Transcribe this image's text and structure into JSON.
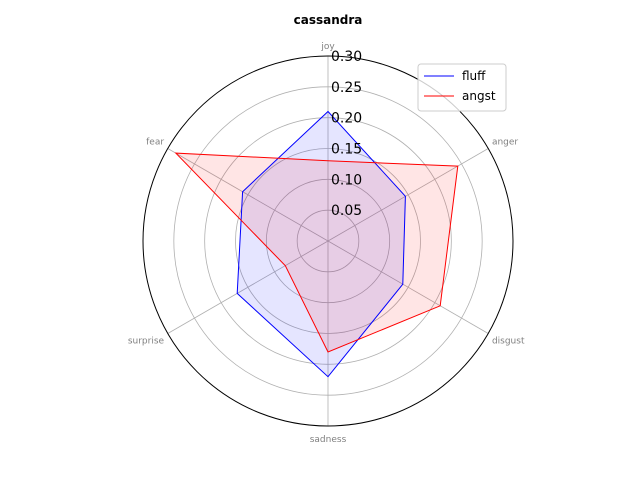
{
  "chart_data": {
    "type": "radar",
    "title": "cassandra",
    "categories": [
      "joy",
      "anger",
      "disgust",
      "sadness",
      "surprise",
      "fear"
    ],
    "rlim": [
      0,
      0.3
    ],
    "rticks": [
      0.05,
      0.1,
      0.15,
      0.2,
      0.25,
      0.3
    ],
    "rtick_labels": [
      "0.05",
      "0.10",
      "0.15",
      "0.20",
      "0.25",
      "0.30"
    ],
    "grid": true,
    "legend_position": "top-right",
    "series": [
      {
        "name": "fluff",
        "color": "#0000ff",
        "values": [
          0.21,
          0.145,
          0.14,
          0.22,
          0.17,
          0.16
        ]
      },
      {
        "name": "angst",
        "color": "#ff0000",
        "values": [
          0.13,
          0.243,
          0.21,
          0.18,
          0.08,
          0.285
        ]
      }
    ]
  }
}
